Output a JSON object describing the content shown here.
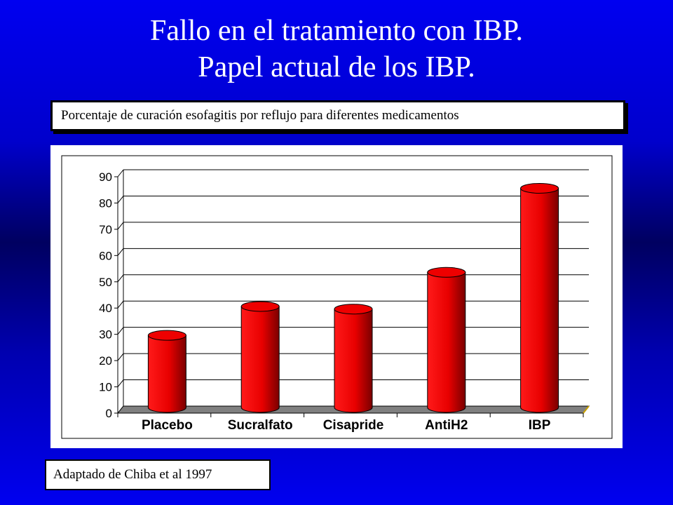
{
  "title": {
    "line1": "Fallo en el tratamiento con IBP.",
    "line2": "Papel actual de los IBP."
  },
  "caption": "Porcentaje de curación esofagitis por reflujo para diferentes medicamentos",
  "source": "Adaptado de Chiba et al 1997",
  "colors": {
    "background": "#0000cc",
    "bar": "#ee0000",
    "floor": "#808080"
  },
  "chart_data": {
    "type": "bar",
    "categories": [
      "Placebo",
      "Sucralfato",
      "Cisapride",
      "AntiH2",
      "IBP"
    ],
    "values": [
      28,
      39,
      38,
      52,
      84
    ],
    "ylim": [
      0,
      90
    ],
    "yticks": [
      0,
      10,
      20,
      30,
      40,
      50,
      60,
      70,
      80,
      90
    ],
    "grid": true,
    "style": "3d-cylinder",
    "xlabel": "",
    "ylabel": ""
  }
}
